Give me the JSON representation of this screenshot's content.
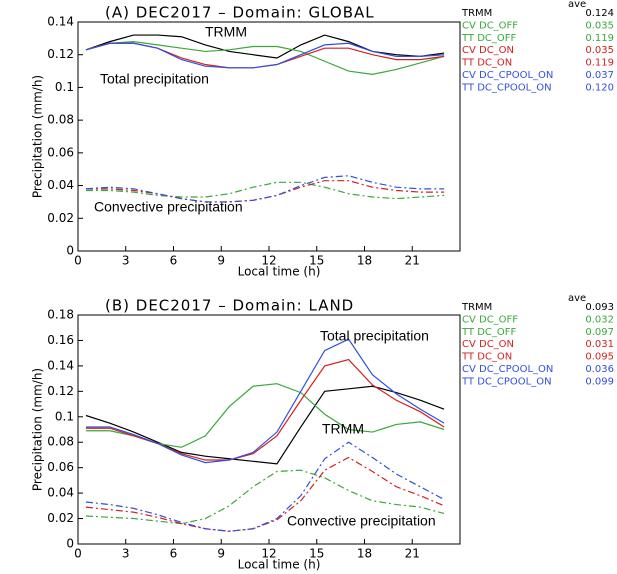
{
  "chart_data": [
    {
      "type": "line",
      "title": "(A)  DEC2017 – Domain: GLOBAL",
      "x_label": "Local time (h)",
      "y_label": "Precipitation (mm/h)",
      "legend_header": "ave",
      "annotations": [
        "TRMM",
        "Total precipitation",
        "Convective precipitation"
      ],
      "xlim": [
        0,
        24
      ],
      "xticks": [
        0,
        3,
        6,
        9,
        12,
        15,
        18,
        21
      ],
      "ylim": [
        0,
        0.14
      ],
      "yticks": [
        0,
        0.02,
        0.04,
        0.06,
        0.08,
        0.1,
        0.12,
        0.14
      ],
      "x": [
        0.5,
        2,
        3.5,
        5,
        6.5,
        8,
        9.5,
        11,
        12.5,
        14,
        15.5,
        17,
        18.5,
        20,
        21.5,
        23
      ],
      "series": [
        {
          "name": "TRMM",
          "color": "#000000",
          "dash": false,
          "ave": {
            "value": 0.124,
            "label": "0.124"
          },
          "values": [
            0.123,
            0.128,
            0.132,
            0.132,
            0.131,
            0.126,
            0.122,
            0.12,
            0.118,
            0.126,
            0.132,
            0.128,
            0.122,
            0.12,
            0.119,
            0.121
          ]
        },
        {
          "name": "CV DC_OFF",
          "color": "#3aa83a",
          "dash": true,
          "ave": {
            "value": 0.035,
            "label": "0.035"
          },
          "values": [
            0.037,
            0.037,
            0.036,
            0.034,
            0.033,
            0.033,
            0.035,
            0.039,
            0.042,
            0.042,
            0.039,
            0.035,
            0.033,
            0.032,
            0.033,
            0.034
          ]
        },
        {
          "name": "TT DC_OFF",
          "color": "#3aa83a",
          "dash": false,
          "ave": {
            "value": 0.119,
            "label": "0.119"
          },
          "values": [
            0.123,
            0.127,
            0.128,
            0.126,
            0.124,
            0.122,
            0.123,
            0.125,
            0.125,
            0.122,
            0.116,
            0.11,
            0.108,
            0.111,
            0.115,
            0.119
          ]
        },
        {
          "name": "CV DC_ON",
          "color": "#d42020",
          "dash": true,
          "ave": {
            "value": 0.035,
            "label": "0.035"
          },
          "values": [
            0.038,
            0.038,
            0.037,
            0.035,
            0.032,
            0.03,
            0.03,
            0.031,
            0.034,
            0.039,
            0.043,
            0.043,
            0.039,
            0.037,
            0.036,
            0.036
          ]
        },
        {
          "name": "TT DC_ON",
          "color": "#d42020",
          "dash": false,
          "ave": {
            "value": 0.119,
            "label": "0.119"
          },
          "values": [
            0.123,
            0.127,
            0.127,
            0.124,
            0.118,
            0.114,
            0.112,
            0.112,
            0.114,
            0.119,
            0.124,
            0.124,
            0.12,
            0.117,
            0.117,
            0.119
          ]
        },
        {
          "name": "CV DC_CPOOL_ON",
          "color": "#3050e0",
          "dash": true,
          "ave": {
            "value": 0.037,
            "label": "0.037"
          },
          "values": [
            0.038,
            0.039,
            0.038,
            0.035,
            0.032,
            0.03,
            0.03,
            0.031,
            0.034,
            0.04,
            0.045,
            0.046,
            0.042,
            0.039,
            0.038,
            0.038
          ]
        },
        {
          "name": "TT DC_CPOOL_ON",
          "color": "#3050e0",
          "dash": false,
          "ave": {
            "value": 0.12,
            "label": "0.120"
          },
          "values": [
            0.123,
            0.127,
            0.127,
            0.124,
            0.117,
            0.113,
            0.112,
            0.112,
            0.114,
            0.12,
            0.126,
            0.127,
            0.122,
            0.119,
            0.119,
            0.12
          ]
        }
      ]
    },
    {
      "type": "line",
      "title": "(B)  DEC2017 – Domain: LAND",
      "x_label": "Local time (h)",
      "y_label": "Precipitation (mm/h)",
      "legend_header": "ave",
      "annotations": [
        "Total precipitation",
        "TRMM",
        "Convective precipitation"
      ],
      "xlim": [
        0,
        24
      ],
      "xticks": [
        0,
        3,
        6,
        9,
        12,
        15,
        18,
        21
      ],
      "ylim": [
        0,
        0.18
      ],
      "yticks": [
        0,
        0.02,
        0.04,
        0.06,
        0.08,
        0.1,
        0.12,
        0.14,
        0.16,
        0.18
      ],
      "x": [
        0.5,
        2,
        3.5,
        5,
        6.5,
        8,
        9.5,
        11,
        12.5,
        14,
        15.5,
        17,
        18.5,
        20,
        21.5,
        23
      ],
      "series": [
        {
          "name": "TRMM",
          "color": "#000000",
          "dash": false,
          "ave": {
            "value": 0.093,
            "label": "0.093"
          },
          "values": [
            0.101,
            0.095,
            0.088,
            0.08,
            0.072,
            0.069,
            0.067,
            0.065,
            0.063,
            0.092,
            0.12,
            0.122,
            0.124,
            0.119,
            0.113,
            0.106
          ]
        },
        {
          "name": "CV DC_OFF",
          "color": "#3aa83a",
          "dash": true,
          "ave": {
            "value": 0.032,
            "label": "0.032"
          },
          "values": [
            0.022,
            0.021,
            0.02,
            0.018,
            0.016,
            0.02,
            0.03,
            0.045,
            0.057,
            0.058,
            0.052,
            0.042,
            0.034,
            0.031,
            0.029,
            0.024
          ]
        },
        {
          "name": "TT DC_OFF",
          "color": "#3aa83a",
          "dash": false,
          "ave": {
            "value": 0.097,
            "label": "0.097"
          },
          "values": [
            0.089,
            0.089,
            0.085,
            0.079,
            0.076,
            0.085,
            0.108,
            0.124,
            0.126,
            0.119,
            0.102,
            0.09,
            0.088,
            0.094,
            0.096,
            0.09
          ]
        },
        {
          "name": "CV DC_ON",
          "color": "#d42020",
          "dash": true,
          "ave": {
            "value": 0.031,
            "label": "0.031"
          },
          "values": [
            0.029,
            0.027,
            0.025,
            0.021,
            0.016,
            0.012,
            0.01,
            0.012,
            0.019,
            0.034,
            0.058,
            0.068,
            0.057,
            0.045,
            0.038,
            0.03
          ]
        },
        {
          "name": "TT DC_ON",
          "color": "#d42020",
          "dash": false,
          "ave": {
            "value": 0.095,
            "label": "0.095"
          },
          "values": [
            0.091,
            0.091,
            0.085,
            0.079,
            0.071,
            0.066,
            0.066,
            0.071,
            0.085,
            0.113,
            0.14,
            0.145,
            0.125,
            0.113,
            0.104,
            0.092
          ]
        },
        {
          "name": "CV DC_CPOOL_ON",
          "color": "#3050e0",
          "dash": true,
          "ave": {
            "value": 0.036,
            "label": "0.036"
          },
          "values": [
            0.033,
            0.031,
            0.028,
            0.023,
            0.017,
            0.012,
            0.01,
            0.012,
            0.02,
            0.038,
            0.067,
            0.08,
            0.068,
            0.055,
            0.045,
            0.035
          ]
        },
        {
          "name": "TT DC_CPOOL_ON",
          "color": "#3050e0",
          "dash": false,
          "ave": {
            "value": 0.099,
            "label": "0.099"
          },
          "values": [
            0.092,
            0.092,
            0.086,
            0.079,
            0.07,
            0.064,
            0.066,
            0.072,
            0.088,
            0.12,
            0.152,
            0.161,
            0.133,
            0.118,
            0.106,
            0.095
          ]
        }
      ]
    }
  ]
}
